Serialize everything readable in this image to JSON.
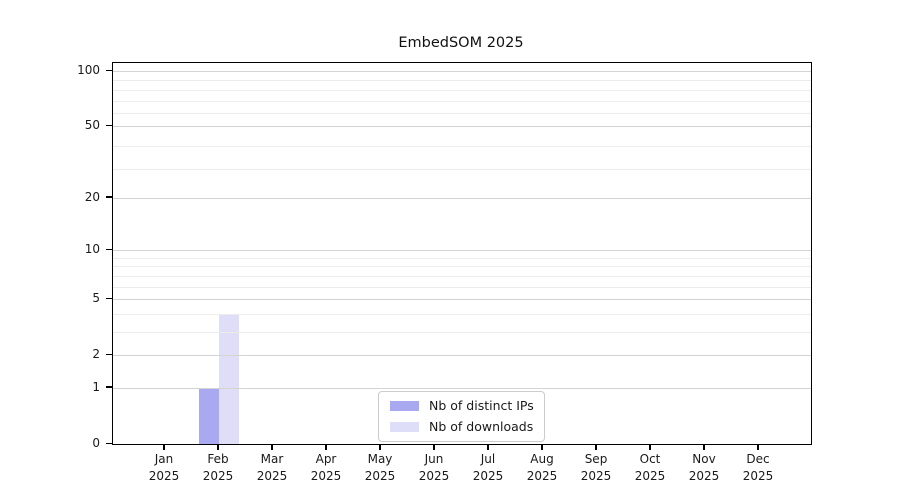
{
  "chart_data": {
    "type": "bar",
    "title": "EmbedSOM 2025",
    "year_label": "2025",
    "categories": [
      "Jan",
      "Feb",
      "Mar",
      "Apr",
      "May",
      "Jun",
      "Jul",
      "Aug",
      "Sep",
      "Oct",
      "Nov",
      "Dec"
    ],
    "series": [
      {
        "name": "Nb of distinct IPs",
        "color": "#a9a9f2",
        "values": [
          0,
          1,
          0,
          0,
          0,
          0,
          0,
          0,
          0,
          0,
          0,
          0
        ]
      },
      {
        "name": "Nb of downloads",
        "color": "#dedef8",
        "values": [
          0,
          4,
          0,
          0,
          0,
          0,
          0,
          0,
          0,
          0,
          0,
          0
        ]
      }
    ],
    "xlabel": "",
    "ylabel": "",
    "y_scale": "log10(value+1)",
    "ylim": [
      0,
      100
    ],
    "yticks": [
      0,
      1,
      2,
      5,
      10,
      20,
      50,
      100
    ],
    "minor_gridlines": [
      3,
      4,
      6,
      7,
      8,
      9,
      29,
      39,
      59,
      69,
      79,
      89
    ],
    "grid": true,
    "legend_position": "lower center inside plot"
  },
  "colors": {
    "grid_major": "#d4d4d4",
    "grid_minor": "#ececec",
    "spine": "#000000",
    "text": "#1a1a1a",
    "background": "#ffffff"
  }
}
